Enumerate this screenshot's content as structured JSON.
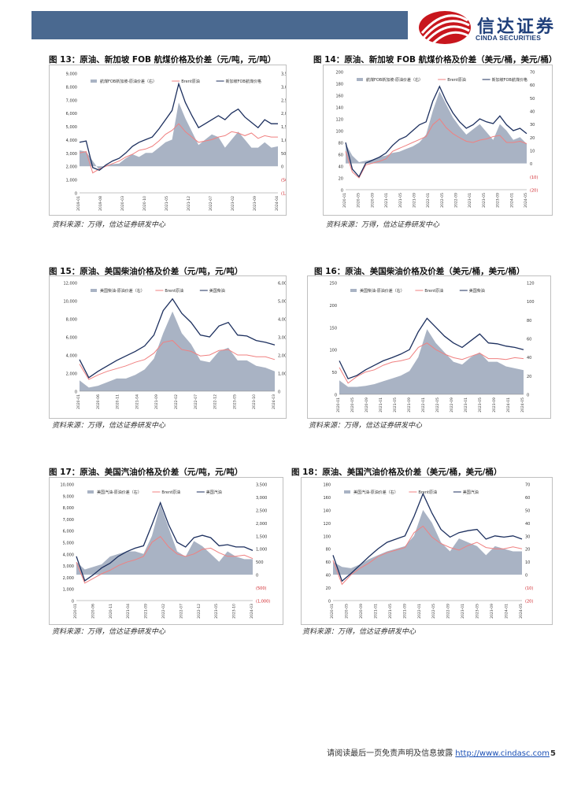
{
  "header": {
    "logo_cn": "信达证券",
    "logo_en": "CINDA SECURITIES",
    "brand_color": "#1f3f7a",
    "bar_color": "#4a6990",
    "logo_accent": "#c8161d"
  },
  "figures": [
    {
      "title": "图 13：原油、新加坡 FOB 航煤价格及价差（元/吨，元/吨）",
      "source": "资料来源：万得，信达证券研发中心"
    },
    {
      "title": "图 14：原油、新加坡 FOB 航煤价格及价差（美元/桶，美元/桶）",
      "source": "资料来源：万得，信达证券研发中心"
    },
    {
      "title": "图 15：原油、美国柴油价格及价差（元/吨，元/吨）",
      "source": "资料来源：万得，信达证券研发中心"
    },
    {
      "title": "图 16：原油、美国柴油价格及价差（美元/桶，美元/桶）",
      "source": "资料来源：万得，信达证券研发中心"
    },
    {
      "title": "图 17：原油、美国汽油价格及价差（元/吨，元/吨）",
      "source": "资料来源：万得，信达证券研发中心"
    },
    {
      "title": "图 18：原油、美国汽油价格及价差（美元/桶，美元/桶）",
      "source": "资料来源：万得，信达证券研发中心"
    }
  ],
  "chart_data": [
    {
      "type": "area",
      "title": "图 13：原油、新加坡 FOB 航煤价格及价差（元/吨，元/吨）",
      "legend": [
        "航煤FOB新加坡-原油价差（右）",
        "Brent原油",
        "新加坡FOB航煤价格"
      ],
      "left_axis": {
        "range": [
          0,
          9000
        ],
        "ticks": [
          "0",
          "1,000",
          "2,000",
          "3,000",
          "4,000",
          "5,000",
          "6,000",
          "7,000",
          "8,000",
          "9,000"
        ]
      },
      "right_axis": {
        "range": [
          -1000,
          3500
        ],
        "ticks": [
          "(1,000)",
          "(500)",
          "0",
          "500",
          "1,000",
          "1,500",
          "2,000",
          "2,500",
          "3,000",
          "3,500"
        ]
      },
      "x_ticks": [
        "2019-01",
        "2019-08",
        "2020-03",
        "2020-10",
        "2021-05",
        "2021-12",
        "2022-07",
        "2023-02",
        "2023-09",
        "2024-04"
      ],
      "series": [
        {
          "name": "航煤FOB新加坡-原油价差（右）",
          "values": [
            600,
            550,
            200,
            -150,
            50,
            80,
            100,
            300,
            450,
            350,
            500,
            500,
            700,
            900,
            1000,
            2400,
            1800,
            1300,
            800,
            1000,
            1200,
            1100,
            700,
            1000,
            1300,
            1000,
            700,
            700,
            900,
            700,
            750
          ]
        },
        {
          "name": "Brent原油",
          "values": [
            3000,
            3100,
            1500,
            1800,
            2000,
            2200,
            2400,
            2700,
            2900,
            3200,
            3300,
            3500,
            3900,
            4400,
            4700,
            5200,
            4600,
            4200,
            3800,
            3900,
            4000,
            4200,
            4300,
            4600,
            4500,
            4300,
            4500,
            4100,
            4300,
            4200,
            4200
          ]
        },
        {
          "name": "新加坡FOB航煤价格",
          "values": [
            3800,
            3900,
            1900,
            1700,
            2100,
            2400,
            2600,
            3000,
            3500,
            3800,
            4000,
            4200,
            4800,
            5500,
            6200,
            8200,
            6800,
            5800,
            4900,
            5200,
            5500,
            5800,
            5500,
            6000,
            6300,
            5700,
            5300,
            4900,
            5500,
            5200,
            5200
          ]
        }
      ]
    },
    {
      "type": "area",
      "title": "图 14：原油、新加坡 FOB 航煤价格及价差（美元/桶，美元/桶）",
      "legend": [
        "航煤FOB新加坡-原油价差（右）",
        "Brent原油",
        "新加坡FOB航煤价格"
      ],
      "left_axis": {
        "range": [
          0,
          200
        ],
        "ticks": [
          "0",
          "20",
          "40",
          "60",
          "80",
          "100",
          "120",
          "140",
          "160",
          "180",
          "200"
        ]
      },
      "right_axis": {
        "range": [
          -20,
          70
        ],
        "ticks": [
          "(20)",
          "(10)",
          "0",
          "10",
          "20",
          "30",
          "40",
          "50",
          "60",
          "70"
        ]
      },
      "x_ticks": [
        "2020-01",
        "2020-05",
        "2020-09",
        "2021-01",
        "2021-05",
        "2021-09",
        "2022-01",
        "2022-05",
        "2022-09",
        "2023-01",
        "2023-05",
        "2023-09",
        "2024-01",
        "2024-05"
      ],
      "series": [
        {
          "name": "航煤FOB新加坡-原油价差（右）",
          "values": [
            15,
            6,
            1,
            2,
            3,
            5,
            6,
            8,
            9,
            11,
            13,
            16,
            22,
            40,
            55,
            45,
            35,
            28,
            22,
            26,
            30,
            24,
            18,
            30,
            25,
            18,
            20,
            15
          ]
        },
        {
          "name": "Brent原油",
          "values": [
            65,
            30,
            20,
            42,
            45,
            48,
            52,
            65,
            70,
            75,
            80,
            85,
            90,
            110,
            120,
            105,
            95,
            88,
            82,
            80,
            84,
            86,
            90,
            92,
            80,
            80,
            82,
            78
          ]
        },
        {
          "name": "新加坡FOB航煤价格",
          "values": [
            80,
            35,
            22,
            45,
            50,
            55,
            62,
            75,
            85,
            90,
            100,
            110,
            115,
            150,
            175,
            150,
            130,
            115,
            104,
            110,
            120,
            115,
            112,
            125,
            110,
            100,
            104,
            95
          ]
        }
      ]
    },
    {
      "type": "area",
      "title": "图 15：原油、美国柴油价格及价差（元/吨，元/吨）",
      "legend": [
        "美国柴油-原油价差（右）",
        "Brent原油",
        "美国柴油"
      ],
      "left_axis": {
        "range": [
          0,
          12000
        ],
        "ticks": [
          "0",
          "2,000",
          "4,000",
          "6,000",
          "8,000",
          "10,000",
          "12,000"
        ]
      },
      "right_axis": {
        "range": [
          0,
          6000
        ],
        "ticks": [
          "0",
          "1,000",
          "2,000",
          "3,000",
          "4,000",
          "5,000",
          "6,000"
        ]
      },
      "x_ticks": [
        "2020-01",
        "2020-06",
        "2020-11",
        "2021-04",
        "2021-09",
        "2022-02",
        "2022-07",
        "2022-12",
        "2023-05",
        "2023-10",
        "2024-03"
      ],
      "series": [
        {
          "name": "美国柴油-原油价差（右）",
          "values": [
            600,
            200,
            300,
            500,
            700,
            700,
            900,
            1200,
            1800,
            3200,
            4400,
            3200,
            2600,
            1700,
            1600,
            2200,
            2400,
            1700,
            1700,
            1400,
            1300,
            1100
          ]
        },
        {
          "name": "Brent原油",
          "values": [
            3000,
            1300,
            1800,
            2200,
            2500,
            2800,
            3200,
            3500,
            4200,
            5400,
            5600,
            4600,
            4400,
            3900,
            4000,
            4500,
            4600,
            4000,
            4000,
            3800,
            3800,
            3500
          ]
        },
        {
          "name": "美国柴油",
          "values": [
            3500,
            1500,
            2200,
            2800,
            3400,
            3900,
            4400,
            5000,
            6200,
            8900,
            10200,
            8600,
            7600,
            6200,
            6000,
            7200,
            7600,
            6200,
            6100,
            5600,
            5400,
            5100
          ]
        }
      ]
    },
    {
      "type": "area",
      "title": "图 16：原油、美国柴油价格及价差（美元/桶，美元/桶）",
      "legend": [
        "美国柴油-原油价差（右）",
        "Brent原油",
        "美国柴油"
      ],
      "left_axis": {
        "range": [
          0,
          250
        ],
        "ticks": [
          "0",
          "50",
          "100",
          "150",
          "200",
          "250"
        ]
      },
      "right_axis": {
        "range": [
          0,
          120
        ],
        "ticks": [
          "0",
          "20",
          "40",
          "60",
          "80",
          "100",
          "120"
        ]
      },
      "x_ticks": [
        "2020-01",
        "2020-05",
        "2020-09",
        "2021-01",
        "2021-05",
        "2021-09",
        "2022-01",
        "2022-05",
        "2022-09",
        "2023-01",
        "2023-05",
        "2023-09",
        "2024-01",
        "2024-05"
      ],
      "series": [
        {
          "name": "美国柴油-原油价差（右）",
          "values": [
            15,
            8,
            8,
            9,
            11,
            14,
            17,
            20,
            25,
            40,
            70,
            55,
            45,
            35,
            32,
            40,
            45,
            35,
            35,
            30,
            28,
            26
          ]
        },
        {
          "name": "Brent原油",
          "values": [
            60,
            25,
            40,
            50,
            55,
            65,
            72,
            75,
            80,
            105,
            115,
            100,
            90,
            82,
            78,
            85,
            92,
            80,
            80,
            78,
            82,
            80
          ]
        },
        {
          "name": "美国柴油",
          "values": [
            75,
            35,
            42,
            55,
            65,
            75,
            82,
            90,
            100,
            140,
            170,
            150,
            130,
            115,
            105,
            120,
            135,
            115,
            113,
            108,
            105,
            100
          ]
        }
      ]
    },
    {
      "type": "area",
      "title": "图 17：原油、美国汽油价格及价差（元/吨，元/吨）",
      "legend": [
        "美国汽油-原油价差（右）",
        "Brent原油",
        "美国汽油"
      ],
      "left_axis": {
        "range": [
          0,
          10000
        ],
        "ticks": [
          "0",
          "1,000",
          "2,000",
          "3,000",
          "4,000",
          "5,000",
          "6,000",
          "7,000",
          "8,000",
          "9,000",
          "10,000"
        ]
      },
      "right_axis": {
        "range": [
          -1000,
          3500
        ],
        "ticks": [
          "(1,000)",
          "(500)",
          "0",
          "500",
          "1,000",
          "1,500",
          "2,000",
          "2,500",
          "3,000",
          "3,500"
        ]
      },
      "x_ticks": [
        "2020-01",
        "2020-06",
        "2020-11",
        "2021-04",
        "2021-09",
        "2022-02",
        "2022-07",
        "2022-12",
        "2023-05",
        "2023-10",
        "2024-03"
      ],
      "series": [
        {
          "name": "美国汽油-原油价差（右）",
          "values": [
            500,
            200,
            300,
            400,
            700,
            800,
            900,
            900,
            800,
            1500,
            2700,
            1800,
            900,
            700,
            1300,
            1100,
            800,
            500,
            900,
            700,
            600,
            600
          ]
        },
        {
          "name": "Brent原油",
          "values": [
            3300,
            1500,
            1900,
            2300,
            2600,
            3000,
            3300,
            3500,
            3800,
            5000,
            5500,
            4600,
            4000,
            3800,
            4000,
            4400,
            4500,
            4100,
            3800,
            3800,
            3900,
            3600
          ]
        },
        {
          "name": "美国汽油",
          "values": [
            3800,
            1700,
            2200,
            2800,
            3200,
            3800,
            4200,
            4500,
            4700,
            6500,
            8400,
            6500,
            5000,
            4600,
            5400,
            5600,
            5400,
            4700,
            4800,
            4600,
            4600,
            4300
          ]
        }
      ]
    },
    {
      "type": "area",
      "title": "图 18：原油、美国汽油价格及价差（美元/桶，美元/桶）",
      "legend": [
        "美国汽油-原油价差（右）",
        "Brent原油",
        "美国汽油"
      ],
      "left_axis": {
        "range": [
          0,
          180
        ],
        "ticks": [
          "0",
          "20",
          "40",
          "60",
          "80",
          "100",
          "120",
          "140",
          "160",
          "180"
        ]
      },
      "right_axis": {
        "range": [
          -20,
          70
        ],
        "ticks": [
          "(20)",
          "(10)",
          "0",
          "10",
          "20",
          "30",
          "40",
          "50",
          "60",
          "70"
        ]
      },
      "x_ticks": [
        "2020-01",
        "2020-05",
        "2020-09",
        "2021-01",
        "2021-05",
        "2021-09",
        "2022-01",
        "2022-05",
        "2022-09",
        "2023-01",
        "2023-05",
        "2023-09",
        "2024-01",
        "2024-05"
      ],
      "series": [
        {
          "name": "美国汽油-原油价差（右）",
          "values": [
            10,
            6,
            5,
            8,
            12,
            15,
            18,
            20,
            22,
            30,
            50,
            40,
            25,
            18,
            28,
            25,
            22,
            15,
            22,
            20,
            18,
            18
          ]
        },
        {
          "name": "Brent原油",
          "values": [
            62,
            25,
            40,
            50,
            58,
            68,
            74,
            78,
            82,
            105,
            115,
            98,
            88,
            82,
            78,
            85,
            90,
            82,
            80,
            80,
            83,
            80
          ]
        },
        {
          "name": "美国汽油",
          "values": [
            70,
            30,
            42,
            55,
            68,
            80,
            90,
            95,
            100,
            130,
            165,
            135,
            110,
            98,
            105,
            108,
            110,
            95,
            100,
            98,
            100,
            95
          ]
        }
      ]
    }
  ],
  "footer": {
    "text": "请阅读最后一页免责声明及信息披露",
    "link": "http://www.cindasc.com",
    "page": "5"
  }
}
